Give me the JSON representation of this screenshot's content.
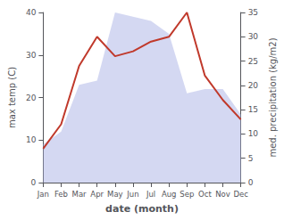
{
  "chart_data": {
    "type": "line",
    "xlabel": "date (month)",
    "ylabel": "max temp (C)",
    "y2label": "med. precipitation (kg/m2)",
    "categories": [
      "Jan",
      "Feb",
      "Mar",
      "Apr",
      "May",
      "Jun",
      "Jul",
      "Aug",
      "Sep",
      "Oct",
      "Nov",
      "Dec"
    ],
    "series": [
      {
        "type": "area",
        "color": "#b0b8e8",
        "values": [
          9,
          12,
          23,
          24,
          40,
          39,
          38,
          35,
          21,
          22,
          22,
          16
        ]
      },
      {
        "type": "line",
        "color": "#c0392b",
        "axis": "y2",
        "values": [
          7,
          12,
          24,
          30,
          26,
          27,
          29,
          30,
          35,
          22,
          17,
          13
        ]
      }
    ],
    "ylim": [
      0,
      40
    ],
    "yticks": [
      0,
      10,
      20,
      30,
      40
    ],
    "y2lim": [
      0,
      35
    ],
    "y2ticks": [
      0,
      5,
      10,
      15,
      20,
      25,
      30,
      35
    ],
    "grid": false
  }
}
